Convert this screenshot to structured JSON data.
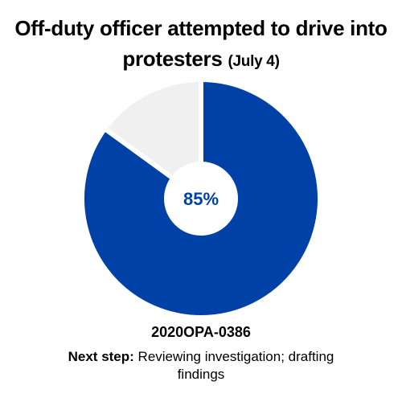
{
  "title": {
    "main": "Off-duty officer attempted to drive into protesters",
    "date": "(July 4)"
  },
  "chart_data": {
    "type": "pie",
    "title": "Off-duty officer attempted to drive into protesters (July 4)",
    "center_label": "85%",
    "slices": [
      {
        "value": 85,
        "color": "#0041a8"
      },
      {
        "value": 15,
        "color": "#f0f0f0"
      }
    ]
  },
  "case": {
    "id": "2020OPA-0386",
    "next_step_label": "Next step:",
    "next_step_text": "Reviewing investigation; drafting findings"
  }
}
